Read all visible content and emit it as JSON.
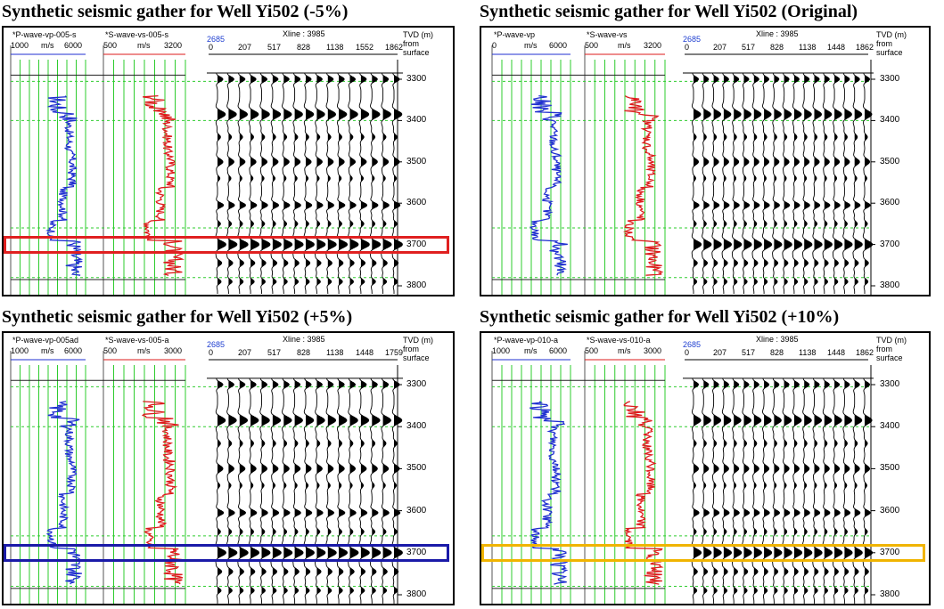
{
  "panels": [
    {
      "title": "Synthetic seismic gather for Well Yi502 (-5%)",
      "vp_header": "*P-wave-vp-005-s",
      "vs_header": "*S-wave-vs-005-s",
      "vp_scale": [
        "1000",
        "m/s",
        "6000"
      ],
      "vs_scale": [
        "500",
        "m/s",
        "3200"
      ],
      "trace_number": "2685",
      "xline": "Xline : 3985",
      "offsets": [
        "0",
        "207",
        "517",
        "828",
        "1138",
        "1552",
        "1862"
      ],
      "tvd_label": [
        "TVD (m)",
        "from",
        "surface"
      ],
      "depths": [
        "3300",
        "3400",
        "3500",
        "3600",
        "3700",
        "3800"
      ],
      "highlight_color": "#e02020",
      "highlight_depth": 3700
    },
    {
      "title": "Synthetic seismic gather for Well Yi502 (Original)",
      "vp_header": "*P-wave-vp",
      "vs_header": "*S-wave-vs",
      "vp_scale": [
        "0",
        "m/s",
        "6000"
      ],
      "vs_scale": [
        "500",
        "m/s",
        "3200"
      ],
      "trace_number": "2685",
      "xline": "Xline : 3985",
      "offsets": [
        "0",
        "207",
        "517",
        "828",
        "1138",
        "1448",
        "1862"
      ],
      "tvd_label": [
        "TVD (m)",
        "from",
        "surface"
      ],
      "depths": [
        "3300",
        "3400",
        "3500",
        "3600",
        "3700",
        "3800"
      ],
      "highlight_color": "",
      "highlight_depth": null
    },
    {
      "title": "Synthetic seismic gather for Well Yi502 (+5%)",
      "vp_header": "*P-wave-vp-005ad",
      "vs_header": "*S-wave-vs-005-a",
      "vp_scale": [
        "1000",
        "m/s",
        "6000"
      ],
      "vs_scale": [
        "500",
        "m/s",
        "3000"
      ],
      "trace_number": "2685",
      "xline": "Xline : 3985",
      "offsets": [
        "0",
        "207",
        "517",
        "828",
        "1138",
        "1448",
        "1759"
      ],
      "tvd_label": [
        "TVD (m)",
        "from",
        "surface"
      ],
      "depths": [
        "3300",
        "3400",
        "3500",
        "3600",
        "3700",
        "3800"
      ],
      "highlight_color": "#1a1aa8",
      "highlight_depth": 3700
    },
    {
      "title": "Synthetic seismic gather for Well Yi502 (+10%)",
      "vp_header": "*P-wave-vp-010-a",
      "vs_header": "*S-wave-vs-010-a",
      "vp_scale": [
        "1000",
        "m/s",
        "6000"
      ],
      "vs_scale": [
        "500",
        "m/s",
        "3000"
      ],
      "trace_number": "2685",
      "xline": "Xline : 3985",
      "offsets": [
        "0",
        "207",
        "517",
        "828",
        "1138",
        "1448",
        "1862"
      ],
      "tvd_label": [
        "TVD (m)",
        "from",
        "surface"
      ],
      "depths": [
        "3300",
        "3400",
        "3500",
        "3600",
        "3700",
        "3800"
      ],
      "highlight_color": "#f0b400",
      "highlight_depth": 3700
    }
  ],
  "colors": {
    "vp_log": "#1f2fd0",
    "vs_log": "#dd1b1b",
    "grid": "#2ecc2e",
    "wiggle": "#000000"
  }
}
